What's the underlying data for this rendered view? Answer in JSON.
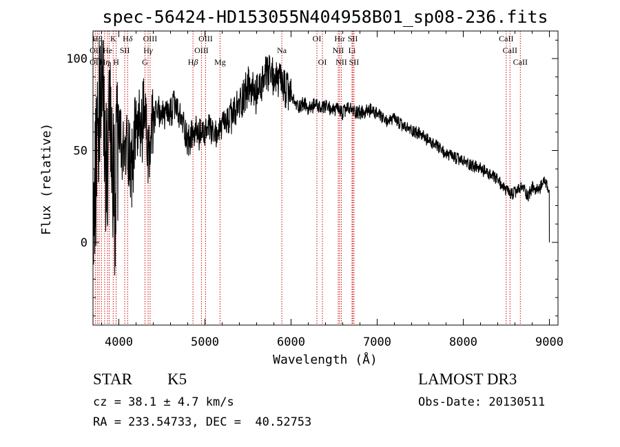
{
  "chart_data": {
    "type": "line",
    "title": "spec-56424-HD153055N404958B01_sp08-236.fits",
    "xlabel": "Wavelength (Å)",
    "ylabel": "Flux (relative)",
    "xlim": [
      3700,
      9100
    ],
    "ylim": [
      -45,
      115
    ],
    "x_ticks": [
      4000,
      5000,
      6000,
      7000,
      8000,
      9000
    ],
    "y_ticks": [
      0,
      50,
      100
    ],
    "grid": false,
    "line_color": "#000000",
    "marker_color": "#cc0000",
    "series": [
      {
        "x": [
          3700,
          3750,
          3800,
          3850,
          3900,
          3950,
          4000,
          4050,
          4100,
          4150,
          4200,
          4250,
          4300,
          4350,
          4400,
          4450,
          4500,
          4550,
          4600,
          4650,
          4700,
          4750,
          4800,
          4850,
          4900,
          4950,
          5000,
          5050,
          5100,
          5150,
          5200,
          5250,
          5300,
          5350,
          5400,
          5450,
          5500,
          5550,
          5600,
          5650,
          5700,
          5750,
          5800,
          5850,
          5900,
          5950,
          6000,
          6050,
          6100,
          6150,
          6200,
          6250,
          6300,
          6350,
          6400,
          6450,
          6500,
          6550,
          6600,
          6650,
          6700,
          6750,
          6800,
          6850,
          6900,
          6950,
          7000,
          7100,
          7200,
          7300,
          7400,
          7500,
          7600,
          7700,
          7800,
          7900,
          8000,
          8100,
          8200,
          8300,
          8400,
          8500,
          8550,
          8600,
          8650,
          8700,
          8750,
          8800,
          8850,
          8900,
          8950,
          9000
        ],
        "y": [
          10,
          60,
          95,
          40,
          55,
          20,
          60,
          45,
          55,
          40,
          65,
          60,
          70,
          45,
          65,
          72,
          70,
          68,
          70,
          75,
          68,
          65,
          55,
          58,
          60,
          58,
          60,
          62,
          58,
          60,
          63,
          65,
          68,
          70,
          75,
          80,
          85,
          82,
          80,
          85,
          90,
          92,
          90,
          88,
          85,
          82,
          80,
          75,
          74,
          76,
          72,
          74,
          75,
          72,
          74,
          73,
          72,
          72,
          70,
          73,
          72,
          71,
          71,
          70,
          72,
          71,
          70,
          66,
          67,
          63,
          61,
          59,
          55,
          52,
          48,
          46,
          44,
          42,
          40,
          37,
          34,
          28,
          26,
          27,
          29,
          30,
          25,
          30,
          28,
          30,
          34,
          26
        ]
      }
    ],
    "line_markers": [
      {
        "wl": 3727,
        "label": "OII"
      },
      {
        "wl": 3750,
        "label": "Hθ"
      },
      {
        "wl": 3771,
        "label": "Hη"
      },
      {
        "wl": 3798,
        "label": "Hη"
      },
      {
        "wl": 3835,
        "label": "Hη"
      },
      {
        "wl": 3869,
        "label": "He"
      },
      {
        "wl": 3889,
        "label": "He"
      },
      {
        "wl": 3934,
        "label": "K"
      },
      {
        "wl": 3969,
        "label": "H"
      },
      {
        "wl": 4069,
        "label": "SII"
      },
      {
        "wl": 4102,
        "label": "Hδ"
      },
      {
        "wl": 4304,
        "label": "G"
      },
      {
        "wl": 4340,
        "label": "Hγ"
      },
      {
        "wl": 4363,
        "label": "OIII"
      },
      {
        "wl": 4861,
        "label": "Hβ"
      },
      {
        "wl": 4959,
        "label": "OIII"
      },
      {
        "wl": 5007,
        "label": "OIII"
      },
      {
        "wl": 5175,
        "label": "Mg"
      },
      {
        "wl": 5893,
        "label": "Na"
      },
      {
        "wl": 6300,
        "label": "OI"
      },
      {
        "wl": 6364,
        "label": "OI"
      },
      {
        "wl": 6548,
        "label": "NII"
      },
      {
        "wl": 6563,
        "label": "Hα"
      },
      {
        "wl": 6583,
        "label": "NII"
      },
      {
        "wl": 6708,
        "label": "Li"
      },
      {
        "wl": 6717,
        "label": "SII"
      },
      {
        "wl": 6731,
        "label": "SII"
      },
      {
        "wl": 8498,
        "label": "CaII"
      },
      {
        "wl": 8542,
        "label": "CaII"
      },
      {
        "wl": 8662,
        "label": "CaII"
      }
    ],
    "top_labels": [
      {
        "text": "H",
        "italic": "θ",
        "wl": 3750,
        "row": 0
      },
      {
        "text": "K",
        "wl": 3934,
        "row": 0
      },
      {
        "text": "H",
        "italic": "δ",
        "wl": 4102,
        "row": 0
      },
      {
        "text": "OIII",
        "wl": 4363,
        "row": 0
      },
      {
        "text": "OIII",
        "wl": 5007,
        "row": 0
      },
      {
        "text": "OI",
        "wl": 6300,
        "row": 0
      },
      {
        "text": "H",
        "italic": "α",
        "wl": 6563,
        "row": 0
      },
      {
        "text": "SII",
        "wl": 6717,
        "row": 0
      },
      {
        "text": "CaII",
        "wl": 8498,
        "row": 0
      },
      {
        "text": "OII",
        "wl": 3727,
        "row": 1
      },
      {
        "text": "He",
        "wl": 3869,
        "row": 1
      },
      {
        "text": "SII",
        "wl": 4069,
        "row": 1
      },
      {
        "text": "H",
        "italic": "γ",
        "wl": 4340,
        "row": 1
      },
      {
        "text": "OIII",
        "wl": 4959,
        "row": 1
      },
      {
        "text": "Na",
        "wl": 5893,
        "row": 1
      },
      {
        "text": "NII",
        "wl": 6548,
        "row": 1
      },
      {
        "text": "Li",
        "wl": 6708,
        "row": 1
      },
      {
        "text": "CaII",
        "wl": 8542,
        "row": 1
      },
      {
        "text": "OII",
        "wl": 3727,
        "row": 2
      },
      {
        "text": "H",
        "italic": "η",
        "wl": 3835,
        "row": 2
      },
      {
        "text": "H",
        "wl": 3969,
        "row": 2
      },
      {
        "text": "G",
        "wl": 4304,
        "row": 2
      },
      {
        "text": "H",
        "italic": "β",
        "wl": 4861,
        "row": 2
      },
      {
        "text": "Mg",
        "wl": 5175,
        "row": 2
      },
      {
        "text": "OI",
        "wl": 6364,
        "row": 2
      },
      {
        "text": "NII",
        "wl": 6583,
        "row": 2
      },
      {
        "text": "SII",
        "wl": 6731,
        "row": 2
      },
      {
        "text": "CaII",
        "wl": 8662,
        "row": 2
      }
    ]
  },
  "info": {
    "object_class": "STAR",
    "subclass": "K5",
    "cz": "cz = 38.1 ± 4.7 km/s",
    "coords": "RA = 233.54733, DEC =  40.52753",
    "survey": "LAMOST DR3",
    "obs_date": "Obs-Date: 20130511"
  }
}
